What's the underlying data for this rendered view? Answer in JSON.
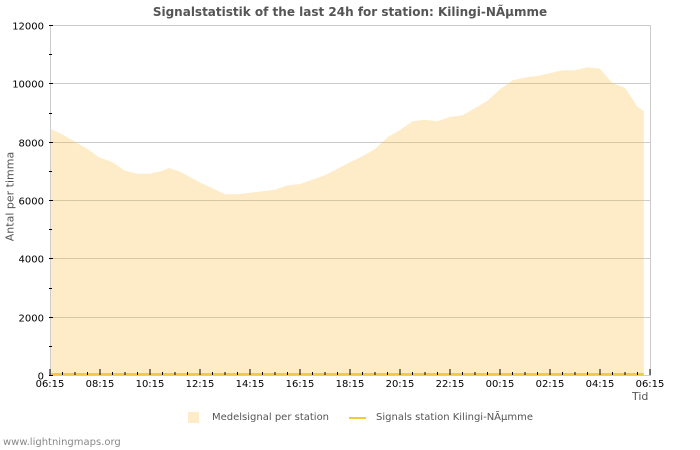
{
  "title": "Signalstatistik of the last 24h for station: Kilingi-NÃµmme",
  "ylabel": "Antal per timma",
  "xlabel": "Tid",
  "footer": "www.lightningmaps.org",
  "legend": {
    "area_label": "Medelsignal per station",
    "line_label": "Signals station Kilingi-NÃµmme"
  },
  "colors": {
    "area": "#feecc8",
    "line": "#f5c842",
    "grid": "#cccccc",
    "grid_on_area": "#d8c8a0"
  },
  "chart_data": {
    "type": "area",
    "title": "Signalstatistik of the last 24h for station: Kilingi-NÃµmme",
    "xlabel": "Tid",
    "ylabel": "Antal per timma",
    "ylim": [
      0,
      12000
    ],
    "yticks": [
      0,
      2000,
      4000,
      6000,
      8000,
      10000,
      12000
    ],
    "xticks": [
      "06:15",
      "08:15",
      "10:15",
      "12:15",
      "14:15",
      "16:15",
      "18:15",
      "20:15",
      "22:15",
      "00:15",
      "02:15",
      "04:15",
      "06:15"
    ],
    "grid": true,
    "legend_position": "bottom",
    "series": [
      {
        "name": "Medelsignal per station",
        "style": "area",
        "x": [
          "06:15",
          "06:45",
          "07:15",
          "07:45",
          "08:15",
          "08:45",
          "09:15",
          "09:45",
          "10:15",
          "10:45",
          "11:00",
          "11:30",
          "12:15",
          "12:45",
          "13:15",
          "13:45",
          "14:15",
          "15:15",
          "15:45",
          "16:15",
          "17:15",
          "18:15",
          "18:45",
          "19:15",
          "19:45",
          "20:15",
          "20:45",
          "21:15",
          "21:45",
          "22:15",
          "22:45",
          "23:15",
          "23:45",
          "00:15",
          "00:45",
          "01:15",
          "01:45",
          "02:15",
          "02:45",
          "03:15",
          "03:45",
          "04:15",
          "04:45",
          "05:15",
          "05:45",
          "06:00"
        ],
        "values": [
          8450,
          8250,
          8000,
          7750,
          7450,
          7300,
          7000,
          6900,
          6900,
          7000,
          7100,
          6950,
          6600,
          6400,
          6200,
          6200,
          6250,
          6350,
          6500,
          6550,
          6850,
          7300,
          7500,
          7750,
          8150,
          8400,
          8700,
          8750,
          8700,
          8850,
          8900,
          9150,
          9400,
          9800,
          10100,
          10200,
          10250,
          10350,
          10450,
          10450,
          10550,
          10500,
          10000,
          9850,
          9200,
          9050
        ]
      },
      {
        "name": "Signals station Kilingi-NÃµmme",
        "style": "line",
        "values": [
          0
        ]
      }
    ]
  }
}
